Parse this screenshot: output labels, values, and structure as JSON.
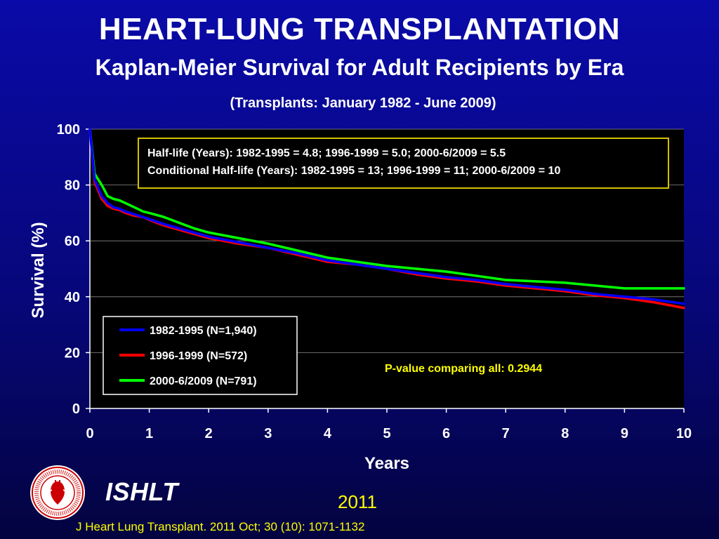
{
  "slide": {
    "title": "HEART-LUNG TRANSPLANTATION",
    "subtitle": "Kaplan-Meier Survival for Adult Recipients by Era",
    "date_range": "(Transplants: January 1982 - June 2009)",
    "brand": "ISHLT",
    "year": "2011",
    "citation": "J Heart Lung Transplant. 2011 Oct; 30 (10): 1071-1132",
    "logo_icon": "ishlt-society-seal-icon",
    "logo_text": "INTERNATIONAL SOCIETY FOR HEART & LUNG TRANSPLANTATION"
  },
  "chart_data": {
    "type": "line",
    "xlabel": "Years",
    "ylabel": "Survival (%)",
    "xlim": [
      0,
      10
    ],
    "ylim": [
      0,
      100
    ],
    "xticks": [
      0,
      1,
      2,
      3,
      4,
      5,
      6,
      7,
      8,
      9,
      10
    ],
    "yticks": [
      0,
      20,
      40,
      60,
      80,
      100
    ],
    "grid": "horizontal",
    "background": "#000000",
    "half_life_box": {
      "border_color": "#d4c000",
      "lines": [
        "Half-life (Years): 1982-1995 = 4.8; 1996-1999 = 5.0; 2000-6/2009 = 5.5",
        "Conditional Half-life (Years): 1982-1995 = 13; 1996-1999 = 11; 2000-6/2009 = 10"
      ]
    },
    "annotation": "P-value comparing all:  0.2944",
    "annotation_color": "#ffff00",
    "legend_position": "lower-left",
    "series": [
      {
        "name": "1982-1995 (N=1,940)",
        "color": "#0000ff",
        "x": [
          0,
          0.08,
          0.2,
          0.3,
          0.4,
          0.5,
          0.6,
          0.75,
          0.9,
          1.0,
          1.25,
          1.5,
          1.75,
          2.0,
          2.5,
          3.0,
          3.5,
          4.0,
          4.5,
          5.0,
          5.5,
          6.0,
          6.5,
          7.0,
          7.5,
          8.0,
          8.5,
          9.0,
          9.5,
          10.0
        ],
        "y": [
          100,
          82,
          76,
          73.5,
          72,
          71.5,
          70.5,
          69.5,
          68.5,
          67.8,
          66,
          64.5,
          63,
          61.5,
          59.5,
          57.5,
          55.5,
          53,
          51.5,
          50,
          48.5,
          47,
          46,
          44.5,
          43.5,
          42.5,
          41,
          40,
          39,
          37.5
        ]
      },
      {
        "name": "1996-1999 (N=572)",
        "color": "#ff0000",
        "x": [
          0,
          0.08,
          0.2,
          0.3,
          0.4,
          0.5,
          0.6,
          0.75,
          0.9,
          1.0,
          1.25,
          1.5,
          1.75,
          2.0,
          2.5,
          3.0,
          3.5,
          4.0,
          4.5,
          5.0,
          5.5,
          6.0,
          6.5,
          7.0,
          7.5,
          8.0,
          8.5,
          9.0,
          9.5,
          10.0
        ],
        "y": [
          100,
          81,
          75,
          72.5,
          71.5,
          71,
          70,
          69,
          68.5,
          67.5,
          65.5,
          64,
          62.5,
          61,
          59,
          57.5,
          55,
          52.5,
          51.5,
          50,
          48,
          46.5,
          45.5,
          44,
          43,
          42,
          40.5,
          39.5,
          38,
          36
        ]
      },
      {
        "name": "2000-6/2009 (N=791)",
        "color": "#00ff00",
        "x": [
          0,
          0.08,
          0.2,
          0.3,
          0.4,
          0.5,
          0.6,
          0.75,
          0.9,
          1.0,
          1.25,
          1.5,
          1.75,
          2.0,
          2.5,
          3.0,
          3.5,
          4.0,
          4.5,
          5.0,
          5.5,
          6.0,
          6.5,
          7.0,
          7.5,
          8.0,
          8.5,
          9.0,
          9.5,
          10.0
        ],
        "y": [
          100,
          84,
          80,
          76,
          75,
          74.5,
          73.5,
          72,
          70.5,
          70,
          68.5,
          66.5,
          64.5,
          63,
          61,
          59,
          56.5,
          54,
          52.5,
          51,
          50,
          49,
          47.5,
          46,
          45.5,
          45,
          44,
          43,
          43,
          43
        ]
      }
    ]
  }
}
